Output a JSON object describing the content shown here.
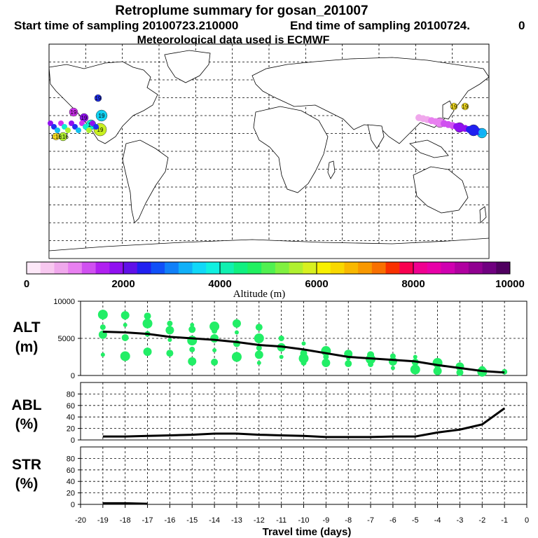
{
  "header": {
    "title": "Retroplume summary for gosan_201007",
    "start_label": "Start time of sampling 20100723.210000",
    "end_label": "End time of sampling 20100724.",
    "end_suffix": "0",
    "met_label": "Meteorological data used is ECMWF"
  },
  "colorbar": {
    "xlabel": "Altitude (m)",
    "tick_labels": [
      "0",
      "2000",
      "4000",
      "6000",
      "8000",
      "10000"
    ],
    "colors": [
      "#fde8f8",
      "#f8c8f0",
      "#f0a8ec",
      "#e880f0",
      "#d050f0",
      "#b020f0",
      "#9010f0",
      "#6010e8",
      "#2020f0",
      "#1050f8",
      "#1080f8",
      "#10b0f8",
      "#10d8f8",
      "#10f0e0",
      "#10f0b0",
      "#10f080",
      "#20f060",
      "#50f050",
      "#80f040",
      "#b0f030",
      "#d8f020",
      "#f8f000",
      "#f8d800",
      "#f8b800",
      "#f89800",
      "#f87000",
      "#f83000",
      "#f80050",
      "#f00090",
      "#e800a8",
      "#d000b0",
      "#b000a0",
      "#900090",
      "#700080",
      "#500060"
    ]
  },
  "map_markers": {
    "west": [
      {
        "label": "19",
        "color": "#2030f0"
      },
      {
        "label": "19",
        "color": "#10d0f0"
      },
      {
        "label": "19",
        "color": "#d030f0"
      },
      {
        "label": "1:16",
        "color": "#b0f030"
      },
      {
        "label": "1:16",
        "color": "#f8e020"
      },
      {
        "label": "19",
        "color": "#9010f0"
      },
      {
        "label": "17",
        "color": "#10f0d0"
      },
      {
        "label": "19",
        "color": "#c8f020"
      }
    ],
    "east": [
      {
        "label": "19",
        "color": "#f8e020"
      },
      {
        "label": "19",
        "color": "#f8e020"
      },
      {
        "label": "19",
        "color": "#e880f0"
      },
      {
        "label": "19",
        "color": "#9010f0"
      },
      {
        "label": "19",
        "color": "#2020f0"
      },
      {
        "label": "19",
        "color": "#10c0f0"
      }
    ]
  },
  "panels": {
    "alt": {
      "label_line1": "ALT",
      "label_line2": "(m)",
      "ytick_labels": [
        "0",
        "5000",
        "10000"
      ]
    },
    "abl": {
      "label_line1": "ABL",
      "label_line2": "(%)",
      "ytick_labels": [
        "0",
        "20",
        "40",
        "60",
        "80"
      ]
    },
    "str": {
      "label_line1": "STR",
      "label_line2": "(%)",
      "ytick_labels": [
        "0",
        "20",
        "40",
        "60",
        "80"
      ]
    },
    "xtick_labels": [
      "-20",
      "-19",
      "-18",
      "-17",
      "-16",
      "-15",
      "-14",
      "-13",
      "-12",
      "-11",
      "-10",
      "-9",
      "-8",
      "-7",
      "-6",
      "-5",
      "-4",
      "-3",
      "-2",
      "-1",
      "0"
    ],
    "xlabel": "Travel time (days)"
  },
  "chart_data": [
    {
      "type": "line",
      "title": "ALT (m)",
      "xlabel": "Travel time (days)",
      "ylabel": "ALT (m)",
      "xlim": [
        -20,
        0
      ],
      "ylim": [
        0,
        10000
      ],
      "x": [
        -19,
        -18,
        -17,
        -16,
        -15,
        -14,
        -13,
        -12,
        -11,
        -10,
        -9,
        -8,
        -7,
        -6,
        -5,
        -4,
        -3,
        -2,
        -1
      ],
      "series": [
        {
          "name": "mean altitude",
          "values": [
            5900,
            5800,
            5600,
            5200,
            5000,
            4800,
            4500,
            4100,
            3900,
            3500,
            3000,
            2500,
            2300,
            2100,
            1900,
            1400,
            1000,
            600,
            400
          ]
        }
      ],
      "scatter": [
        {
          "x": -19,
          "values": [
            8200,
            6500,
            5500,
            2800
          ]
        },
        {
          "x": -18,
          "values": [
            8100,
            6800,
            5100,
            2600
          ]
        },
        {
          "x": -17,
          "values": [
            8000,
            7000,
            5600,
            3200
          ]
        },
        {
          "x": -16,
          "values": [
            7000,
            6100,
            4800,
            3000
          ]
        },
        {
          "x": -15,
          "values": [
            6800,
            6200,
            4700,
            3500,
            1900
          ]
        },
        {
          "x": -14,
          "values": [
            6600,
            6000,
            5000,
            3400,
            1800
          ]
        },
        {
          "x": -13,
          "values": [
            7000,
            5800,
            4300,
            2500
          ]
        },
        {
          "x": -12,
          "values": [
            6500,
            5000,
            3700,
            2800,
            1700
          ]
        },
        {
          "x": -11,
          "values": [
            5000,
            3800,
            2500
          ]
        },
        {
          "x": -10,
          "values": [
            4300,
            3000,
            2300,
            1700
          ]
        },
        {
          "x": -9,
          "values": [
            3300,
            2500,
            1700
          ]
        },
        {
          "x": -8,
          "values": [
            2900,
            2300,
            1600
          ]
        },
        {
          "x": -7,
          "values": [
            2800,
            2200,
            1500
          ]
        },
        {
          "x": -6,
          "values": [
            2600,
            1900,
            1000
          ]
        },
        {
          "x": -5,
          "values": [
            2500,
            1800,
            800
          ]
        },
        {
          "x": -4,
          "values": [
            1700,
            1200,
            600
          ]
        },
        {
          "x": -3,
          "values": [
            1200,
            800,
            400
          ]
        },
        {
          "x": -2,
          "values": [
            800,
            500
          ]
        },
        {
          "x": -1,
          "values": [
            500
          ]
        }
      ]
    },
    {
      "type": "line",
      "title": "ABL (%)",
      "xlabel": "Travel time (days)",
      "ylabel": "ABL (%)",
      "xlim": [
        -20,
        0
      ],
      "ylim": [
        0,
        100
      ],
      "x": [
        -19,
        -18,
        -17,
        -16,
        -15,
        -14,
        -13,
        -12,
        -11,
        -10,
        -9,
        -8,
        -7,
        -6,
        -5,
        -4,
        -3,
        -2,
        -1
      ],
      "series": [
        {
          "name": "ABL fraction",
          "values": [
            6,
            6,
            7,
            8,
            9,
            11,
            11,
            9,
            8,
            7,
            5,
            5,
            5,
            6,
            6,
            13,
            18,
            27,
            55
          ]
        }
      ]
    },
    {
      "type": "line",
      "title": "STR (%)",
      "xlabel": "Travel time (days)",
      "ylabel": "STR (%)",
      "xlim": [
        -20,
        0
      ],
      "ylim": [
        0,
        100
      ],
      "x": [
        -19,
        -18,
        -17
      ],
      "series": [
        {
          "name": "stratospheric fraction",
          "values": [
            2,
            2,
            1
          ]
        }
      ]
    }
  ]
}
